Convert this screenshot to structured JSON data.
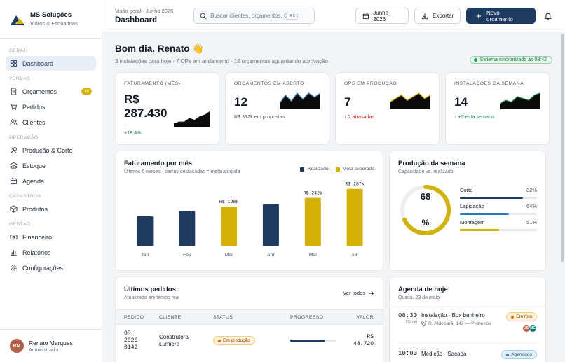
{
  "brand": {
    "name": "MS Soluções",
    "subtitle": "Vidros & Esquadrias"
  },
  "sidebar": {
    "groups": [
      {
        "label": "GERAL",
        "items": [
          {
            "label": "Dashboard",
            "icon": "grid-icon",
            "active": true
          }
        ]
      },
      {
        "label": "VENDAS",
        "items": [
          {
            "label": "Orçamentos",
            "icon": "document-icon",
            "badge": "12"
          },
          {
            "label": "Pedidos",
            "icon": "cart-icon"
          },
          {
            "label": "Clientes",
            "icon": "users-icon"
          }
        ]
      },
      {
        "label": "OPERAÇÃO",
        "items": [
          {
            "label": "Produção & Corte",
            "icon": "tools-icon"
          },
          {
            "label": "Estoque",
            "icon": "layers-icon"
          },
          {
            "label": "Agenda",
            "icon": "calendar-icon"
          }
        ]
      },
      {
        "label": "CADASTROS",
        "items": [
          {
            "label": "Produtos",
            "icon": "box-icon"
          }
        ]
      },
      {
        "label": "GESTÃO",
        "items": [
          {
            "label": "Financeiro",
            "icon": "banknote-icon"
          },
          {
            "label": "Relatórios",
            "icon": "bar-chart-icon"
          },
          {
            "label": "Configurações",
            "icon": "gear-icon"
          }
        ]
      }
    ]
  },
  "user": {
    "initials": "RM",
    "name": "Renato Marques",
    "role": "Administrador",
    "avatar_color": "#b45f46"
  },
  "header": {
    "breadcrumb": "Visão geral · Junho 2026",
    "title": "Dashboard",
    "search": {
      "placeholder": "Buscar clientes, orçamentos, OPs...",
      "shortcut": "⌘K"
    },
    "period_button": "Junho 2026",
    "export_button": "Exportar",
    "new_button": "Novo orçamento"
  },
  "greeting": {
    "title": "Bom dia, Renato 👋",
    "subtitle": "3 instalações para hoje · 7 OPs em andamento · 12 orçamentos aguardando aprovação",
    "sync_status": "Sistema sincronizado às 08:42"
  },
  "kpis": [
    {
      "label": "FATURAMENTO (MÊS)",
      "value_line1": "R$",
      "value_line2": "287.430",
      "trend_arrow": "↑",
      "sub": "+18,4%",
      "sub_tone": "green",
      "spark": [
        2,
        3,
        3,
        5,
        4,
        6,
        7,
        9
      ],
      "spark_color": "#111111"
    },
    {
      "label": "ORÇAMENTOS EM ABERTO",
      "value": "12",
      "sub": "R$ 312k em propostas",
      "sub_tone": "neutral",
      "spark": [
        3,
        7,
        4,
        8,
        5,
        8,
        6,
        8
      ],
      "spark_color": "#3f7fb7"
    },
    {
      "label": "OPS EM PRODUÇÃO",
      "value": "7",
      "sub": "↓ 2 atrasadas",
      "sub_tone": "red",
      "spark": [
        4,
        6,
        8,
        5,
        7,
        9,
        6,
        8
      ],
      "spark_color": "#d4b106"
    },
    {
      "label": "INSTALAÇÕES DA SEMANA",
      "value": "14",
      "sub": "↑ +3 esta semana",
      "sub_tone": "green",
      "spark": [
        3,
        5,
        4,
        7,
        6,
        5,
        8,
        9
      ],
      "spark_color": "#15803d"
    }
  ],
  "revenue_chart": {
    "title": "Faturamento por mês",
    "subtitle": "Últimos 6 meses · barras destacadas = meta atingida",
    "legend": [
      {
        "name": "Realizado",
        "color": "#1e3a5f"
      },
      {
        "name": "Meta superada",
        "color": "#d4b106"
      }
    ]
  },
  "chart_data": {
    "type": "bar",
    "categories": [
      "Jan",
      "Fev",
      "Mar",
      "Abr",
      "Mai",
      "Jun"
    ],
    "values": [
      150,
      175,
      198,
      210,
      242,
      287
    ],
    "highlighted": [
      false,
      false,
      true,
      false,
      true,
      true
    ],
    "data_labels": [
      "",
      "",
      "R$ 198k",
      "",
      "R$ 242k",
      "R$ 287k"
    ],
    "ylim": [
      0,
      300
    ],
    "grid": false,
    "legend_position": "top-right"
  },
  "production": {
    "title": "Produção da semana",
    "subtitle": "Capacidade vs. realizado",
    "gauge_value": "68",
    "gauge_unit": "%",
    "gauge_fraction": 0.68,
    "rows": [
      {
        "label": "Corte",
        "pct": "82%",
        "fraction": 0.82,
        "color": "#1e3a5f"
      },
      {
        "label": "Lapidação",
        "pct": "64%",
        "fraction": 0.64,
        "color": "#2b7bbf"
      },
      {
        "label": "Montagem",
        "pct": "51%",
        "fraction": 0.51,
        "color": "#d4b106"
      }
    ]
  },
  "orders": {
    "title": "Últimos pedidos",
    "subtitle": "Atualizado em tempo real",
    "link": "Ver todos",
    "columns": [
      "PEDIDO",
      "CLIENTE",
      "STATUS",
      "PROGRESSO",
      "VALOR"
    ],
    "rows": [
      {
        "id_lines": [
          "OR-",
          "2026-",
          "0142"
        ],
        "client_lines": [
          "Construtora",
          "Lumière"
        ],
        "status": "Em produção",
        "progress": 0.75,
        "value_lines": [
          "R$",
          "48.720"
        ]
      }
    ]
  },
  "agenda": {
    "title": "Agenda de hoje",
    "subtitle": "Quinta, 23 de maio",
    "items": [
      {
        "time": "08:30",
        "date": "23/mai",
        "title": "Instalação · Box banheiro",
        "address": "R. Aldebarã, 142 — Pinheiros",
        "status": "Em rota",
        "tone": "amber",
        "avatars": [
          {
            "initials": "JS",
            "color": "#b45f46"
          },
          {
            "initials": "MC",
            "color": "#0f766e"
          }
        ]
      },
      {
        "time": "10:00",
        "title": "Medição · Sacada",
        "status": "Agendado",
        "tone": "blue"
      }
    ]
  }
}
